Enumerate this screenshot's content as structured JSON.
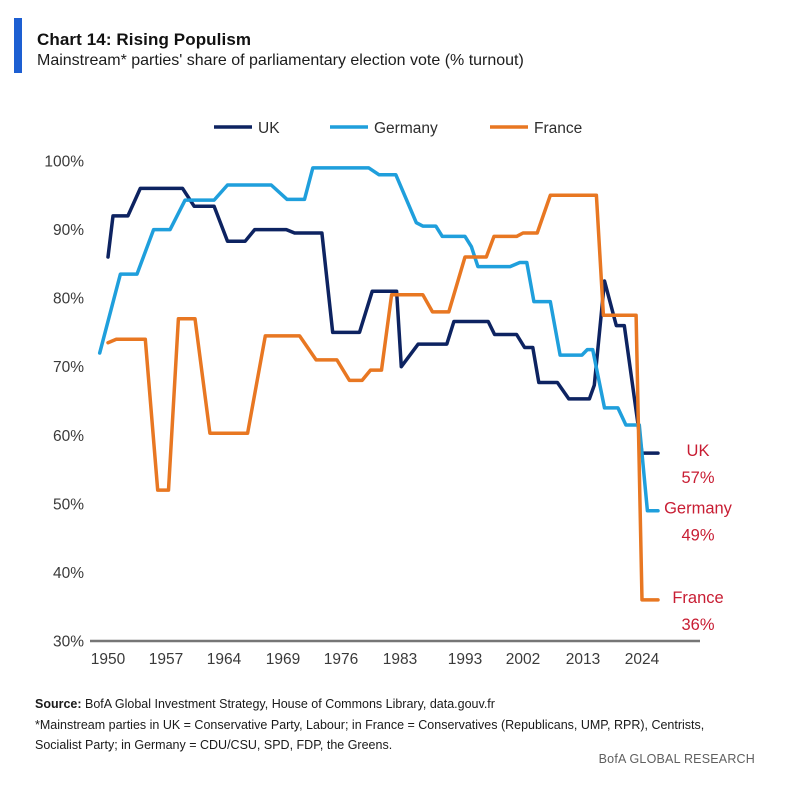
{
  "header": {
    "title": "Chart 14: Rising Populism",
    "subtitle": "Mainstream* parties' share of parliamentary election vote (% turnout)",
    "accent_color": "#1d5fd2"
  },
  "chart_data": {
    "type": "line",
    "title": "Mainstream parties' share of parliamentary election vote (% turnout)",
    "xlabel": "",
    "ylabel": "",
    "x_ticks": [
      1950,
      1957,
      1964,
      1969,
      1976,
      1983,
      1993,
      2002,
      2013,
      2024
    ],
    "y_ticks": [
      100,
      90,
      80,
      70,
      60,
      50,
      40,
      30
    ],
    "y_tick_suffix": "%",
    "ylim": [
      30,
      100
    ],
    "grid": false,
    "legend_position": "top",
    "axis_color": "#767676",
    "tick_label_color": "#3a3a3a",
    "end_label_color": "#c81d33",
    "series": [
      {
        "name": "UK",
        "color": "#0d2361",
        "end_label": "UK",
        "end_value": "57%",
        "points": [
          [
            1950,
            86
          ],
          [
            1950.6,
            92
          ],
          [
            1952.4,
            92
          ],
          [
            1953.9,
            96
          ],
          [
            1959,
            96
          ],
          [
            1960.4,
            93.4
          ],
          [
            1962.8,
            93.4
          ],
          [
            1964.3,
            88.3
          ],
          [
            1965.8,
            88.3
          ],
          [
            1966.6,
            90
          ],
          [
            1969.4,
            90
          ],
          [
            1970.4,
            89.5
          ],
          [
            1973.7,
            89.5
          ],
          [
            1975,
            75
          ],
          [
            1978.2,
            75
          ],
          [
            1979.7,
            81
          ],
          [
            1982.6,
            81
          ],
          [
            1983.2,
            70
          ],
          [
            1985.8,
            73.3
          ],
          [
            1990.2,
            73.3
          ],
          [
            1991.3,
            76.6
          ],
          [
            1996.6,
            76.6
          ],
          [
            1997.6,
            74.7
          ],
          [
            2001,
            74.7
          ],
          [
            2002.3,
            72.8
          ],
          [
            2003.8,
            72.8
          ],
          [
            2004.9,
            67.7
          ],
          [
            2008.3,
            67.7
          ],
          [
            2010.4,
            65.3
          ],
          [
            2014.2,
            65.3
          ],
          [
            2015.1,
            67.3
          ],
          [
            2017,
            82.5
          ],
          [
            2019.2,
            76
          ],
          [
            2020.7,
            76
          ],
          [
            2024,
            57.4
          ]
        ]
      },
      {
        "name": "Germany",
        "color": "#1f9fdc",
        "end_label": "Germany",
        "end_value": "49%",
        "points": [
          [
            1949,
            72
          ],
          [
            1951.5,
            83.5
          ],
          [
            1953.5,
            83.5
          ],
          [
            1955.5,
            90
          ],
          [
            1957.5,
            90
          ],
          [
            1959.3,
            94.3
          ],
          [
            1962.8,
            94.3
          ],
          [
            1964.3,
            96.5
          ],
          [
            1968,
            96.5
          ],
          [
            1969.5,
            94.4
          ],
          [
            1971.6,
            94.4
          ],
          [
            1972.6,
            99
          ],
          [
            1979.3,
            99
          ],
          [
            1980.5,
            98
          ],
          [
            1982.5,
            98
          ],
          [
            1985.5,
            91
          ],
          [
            1986.5,
            90.5
          ],
          [
            1988.5,
            90.5
          ],
          [
            1989.5,
            89
          ],
          [
            1993,
            89
          ],
          [
            1994,
            87.5
          ],
          [
            1995,
            84.6
          ],
          [
            2000,
            84.6
          ],
          [
            2001.5,
            85.2
          ],
          [
            2002.7,
            85.2
          ],
          [
            2004,
            79.5
          ],
          [
            2007,
            79.5
          ],
          [
            2008.8,
            71.7
          ],
          [
            2012.8,
            71.7
          ],
          [
            2013.8,
            72.5
          ],
          [
            2014.8,
            72.5
          ],
          [
            2017,
            64
          ],
          [
            2019.5,
            64
          ],
          [
            2021,
            61.5
          ],
          [
            2023.5,
            61.5
          ],
          [
            2025,
            49
          ]
        ]
      },
      {
        "name": "France",
        "color": "#e87722",
        "end_label": "France",
        "end_value": "36%",
        "points": [
          [
            1950,
            73.5
          ],
          [
            1951,
            74
          ],
          [
            1954.5,
            74
          ],
          [
            1956,
            52
          ],
          [
            1957.3,
            52
          ],
          [
            1958.5,
            77
          ],
          [
            1960.5,
            77
          ],
          [
            1962.3,
            60.3
          ],
          [
            1966,
            60.3
          ],
          [
            1967.5,
            74.5
          ],
          [
            1971,
            74.5
          ],
          [
            1973,
            71
          ],
          [
            1975.5,
            71
          ],
          [
            1977,
            68
          ],
          [
            1978.5,
            68
          ],
          [
            1979.5,
            69.5
          ],
          [
            1980.8,
            69.5
          ],
          [
            1982,
            80.5
          ],
          [
            1986.5,
            80.5
          ],
          [
            1988,
            78
          ],
          [
            1990.5,
            78
          ],
          [
            1993,
            86
          ],
          [
            1996.3,
            86
          ],
          [
            1997.5,
            89
          ],
          [
            2001,
            89
          ],
          [
            2002,
            89.5
          ],
          [
            2004.6,
            89.5
          ],
          [
            2007,
            95
          ],
          [
            2015.5,
            95
          ],
          [
            2016.8,
            77.5
          ],
          [
            2022.9,
            77.5
          ],
          [
            2024,
            36
          ]
        ]
      }
    ]
  },
  "footer": {
    "source_label": "Source:",
    "source_text": " BofA Global Investment Strategy, House of Commons Library, data.gouv.fr",
    "footnote": "*Mainstream parties in UK = Conservative Party, Labour; in France = Conservatives (Republicans, UMP, RPR), Centrists, Socialist Party; in Germany = CDU/CSU, SPD, FDP, the Greens.",
    "brand": "BofA GLOBAL RESEARCH"
  }
}
